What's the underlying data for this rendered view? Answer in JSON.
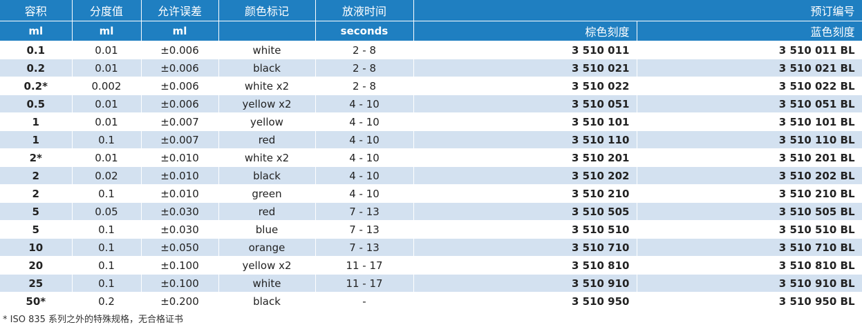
{
  "header": {
    "volume": "容积",
    "subdivision": "分度值",
    "tolerance": "允许误差",
    "color_code": "颜色标记",
    "outflow_time": "放液时间",
    "order_number": "预订编号"
  },
  "units": {
    "volume": "ml",
    "subdivision": "ml",
    "tolerance": "ml",
    "color_code": "",
    "outflow_time": "seconds",
    "brown_graduation": "棕色刻度",
    "blue_graduation": "蓝色刻度"
  },
  "rows": [
    {
      "volume": "0.1",
      "subdivision": "0.01",
      "tolerance": "±0.006",
      "color": "white",
      "time": "2 - 8",
      "brown": "3 510 011",
      "blue": "3 510 011 BL"
    },
    {
      "volume": "0.2",
      "subdivision": "0.01",
      "tolerance": "±0.006",
      "color": "black",
      "time": "2 - 8",
      "brown": "3 510 021",
      "blue": "3 510 021 BL"
    },
    {
      "volume": "0.2*",
      "subdivision": "0.002",
      "tolerance": "±0.006",
      "color": "white x2",
      "time": "2 - 8",
      "brown": "3 510 022",
      "blue": "3 510 022 BL"
    },
    {
      "volume": "0.5",
      "subdivision": "0.01",
      "tolerance": "±0.006",
      "color": "yellow x2",
      "time": "4 - 10",
      "brown": "3 510 051",
      "blue": "3 510 051 BL"
    },
    {
      "volume": "1",
      "subdivision": "0.01",
      "tolerance": "±0.007",
      "color": "yellow",
      "time": "4 - 10",
      "brown": "3 510 101",
      "blue": "3 510 101 BL"
    },
    {
      "volume": "1",
      "subdivision": "0.1",
      "tolerance": "±0.007",
      "color": "red",
      "time": "4 - 10",
      "brown": "3 510 110",
      "blue": "3 510 110 BL"
    },
    {
      "volume": "2*",
      "subdivision": "0.01",
      "tolerance": "±0.010",
      "color": "white x2",
      "time": "4 - 10",
      "brown": "3 510 201",
      "blue": "3 510 201 BL"
    },
    {
      "volume": "2",
      "subdivision": "0.02",
      "tolerance": "±0.010",
      "color": "black",
      "time": "4 - 10",
      "brown": "3 510 202",
      "blue": "3 510 202 BL"
    },
    {
      "volume": "2",
      "subdivision": "0.1",
      "tolerance": "±0.010",
      "color": "green",
      "time": "4 - 10",
      "brown": "3 510 210",
      "blue": "3 510 210 BL"
    },
    {
      "volume": "5",
      "subdivision": "0.05",
      "tolerance": "±0.030",
      "color": "red",
      "time": "7 - 13",
      "brown": "3 510 505",
      "blue": "3 510 505 BL"
    },
    {
      "volume": "5",
      "subdivision": "0.1",
      "tolerance": "±0.030",
      "color": "blue",
      "time": "7 - 13",
      "brown": "3 510 510",
      "blue": "3 510 510 BL"
    },
    {
      "volume": "10",
      "subdivision": "0.1",
      "tolerance": "±0.050",
      "color": "orange",
      "time": "7 - 13",
      "brown": "3 510 710",
      "blue": "3 510 710 BL"
    },
    {
      "volume": "20",
      "subdivision": "0.1",
      "tolerance": "±0.100",
      "color": "yellow x2",
      "time": "11 - 17",
      "brown": "3 510 810",
      "blue": "3 510 810 BL"
    },
    {
      "volume": "25",
      "subdivision": "0.1",
      "tolerance": "±0.100",
      "color": "white",
      "time": "11 - 17",
      "brown": "3 510 910",
      "blue": "3 510 910 BL"
    },
    {
      "volume": "50*",
      "subdivision": "0.2",
      "tolerance": "±0.200",
      "color": "black",
      "time": "-",
      "brown": "3 510 950",
      "blue": "3 510 950 BL"
    }
  ],
  "footnote": "*  ISO 835 系列之外的特殊规格，无合格证书",
  "colors": {
    "header_bg": "#1f7fc1",
    "stripe_bg": "#d3e1f0",
    "text": "#222222"
  }
}
